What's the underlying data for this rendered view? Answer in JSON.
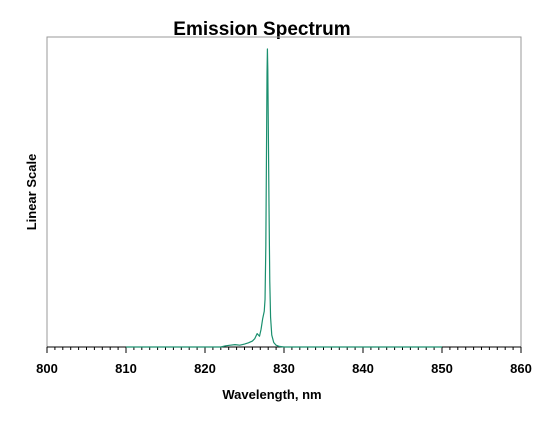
{
  "chart_data": {
    "type": "line",
    "title": "Emission Spectrum",
    "xlabel": "Wavelength, nm",
    "ylabel": "Linear Scale",
    "xlim": [
      800,
      860
    ],
    "ylim": [
      0,
      1
    ],
    "x_ticks": [
      800,
      810,
      820,
      830,
      840,
      850,
      860
    ],
    "x_minor_step": 1,
    "y_tick_labels": false,
    "grid": false,
    "legend": "none",
    "series": [
      {
        "color": "#1a8f6e",
        "points": [
          [
            810,
            0.0
          ],
          [
            822.0,
            0.0
          ],
          [
            822.6,
            0.004
          ],
          [
            823.2,
            0.006
          ],
          [
            823.8,
            0.008
          ],
          [
            824.4,
            0.006
          ],
          [
            825.0,
            0.01
          ],
          [
            825.5,
            0.014
          ],
          [
            826.0,
            0.02
          ],
          [
            826.3,
            0.028
          ],
          [
            826.6,
            0.045
          ],
          [
            826.9,
            0.036
          ],
          [
            827.1,
            0.06
          ],
          [
            827.3,
            0.095
          ],
          [
            827.5,
            0.12
          ],
          [
            827.6,
            0.16
          ],
          [
            827.7,
            0.34
          ],
          [
            827.8,
            0.72
          ],
          [
            827.85,
            0.92
          ],
          [
            827.9,
            1.0
          ],
          [
            827.95,
            0.93
          ],
          [
            828.0,
            0.78
          ],
          [
            828.1,
            0.48
          ],
          [
            828.2,
            0.22
          ],
          [
            828.3,
            0.1
          ],
          [
            828.45,
            0.04
          ],
          [
            828.7,
            0.015
          ],
          [
            829.0,
            0.006
          ],
          [
            829.4,
            0.002
          ],
          [
            830.0,
            0.0
          ],
          [
            850,
            0.0
          ]
        ]
      }
    ]
  }
}
